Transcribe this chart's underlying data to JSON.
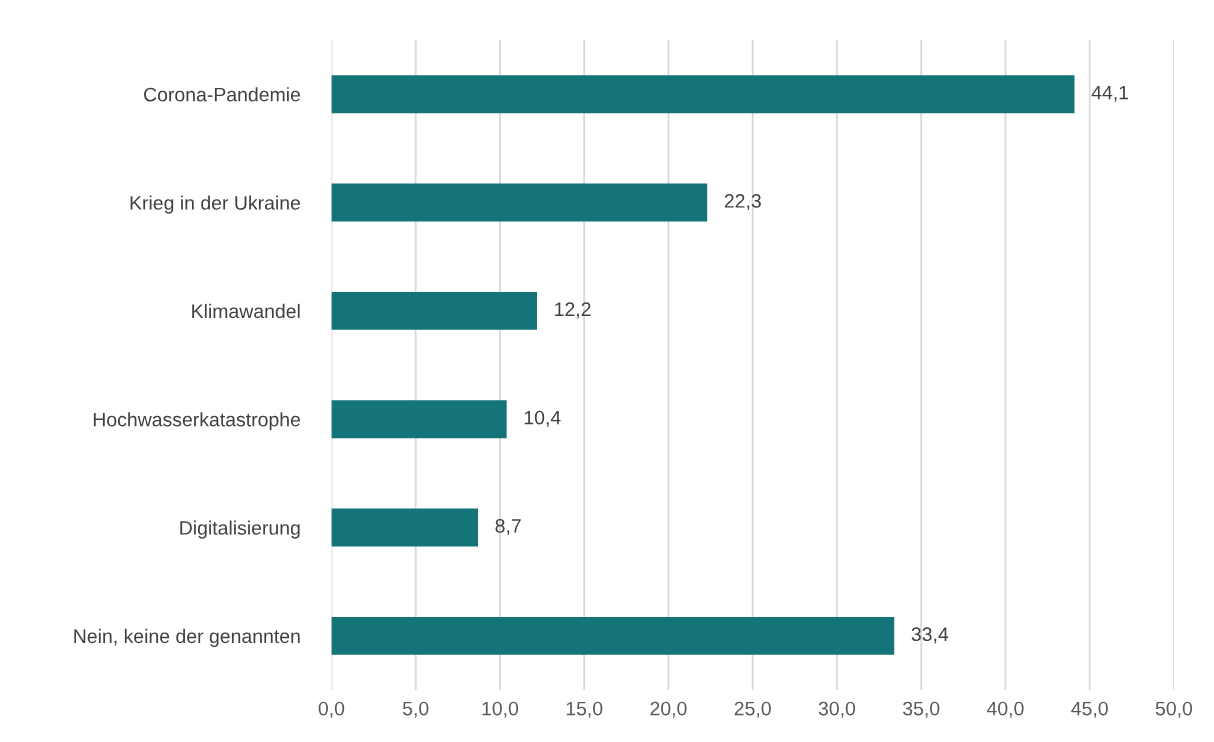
{
  "chart_data": {
    "type": "bar",
    "orientation": "horizontal",
    "categories": [
      "Corona-Pandemie",
      "Krieg in der Ukraine",
      "Klimawandel",
      "Hochwasserkatastrophe",
      "Digitalisierung",
      "Nein, keine der genannten"
    ],
    "values": [
      44.1,
      22.3,
      12.2,
      10.4,
      8.7,
      33.4
    ],
    "value_labels": [
      "44,1",
      "22,3",
      "12,2",
      "10,4",
      "8,7",
      "33,4"
    ],
    "color": "#15737a",
    "xlim": [
      0,
      50
    ],
    "xticks": [
      {
        "value": 0,
        "label": "0,0"
      },
      {
        "value": 5,
        "label": "5,0"
      },
      {
        "value": 10,
        "label": "10,0"
      },
      {
        "value": 15,
        "label": "15,0"
      },
      {
        "value": 20,
        "label": "20,0"
      },
      {
        "value": 25,
        "label": "25,0"
      },
      {
        "value": 30,
        "label": "30,0"
      },
      {
        "value": 35,
        "label": "35,0"
      },
      {
        "value": 40,
        "label": "40,0"
      },
      {
        "value": 45,
        "label": "45,0"
      },
      {
        "value": 50,
        "label": "50,0"
      }
    ],
    "grid": "x"
  }
}
